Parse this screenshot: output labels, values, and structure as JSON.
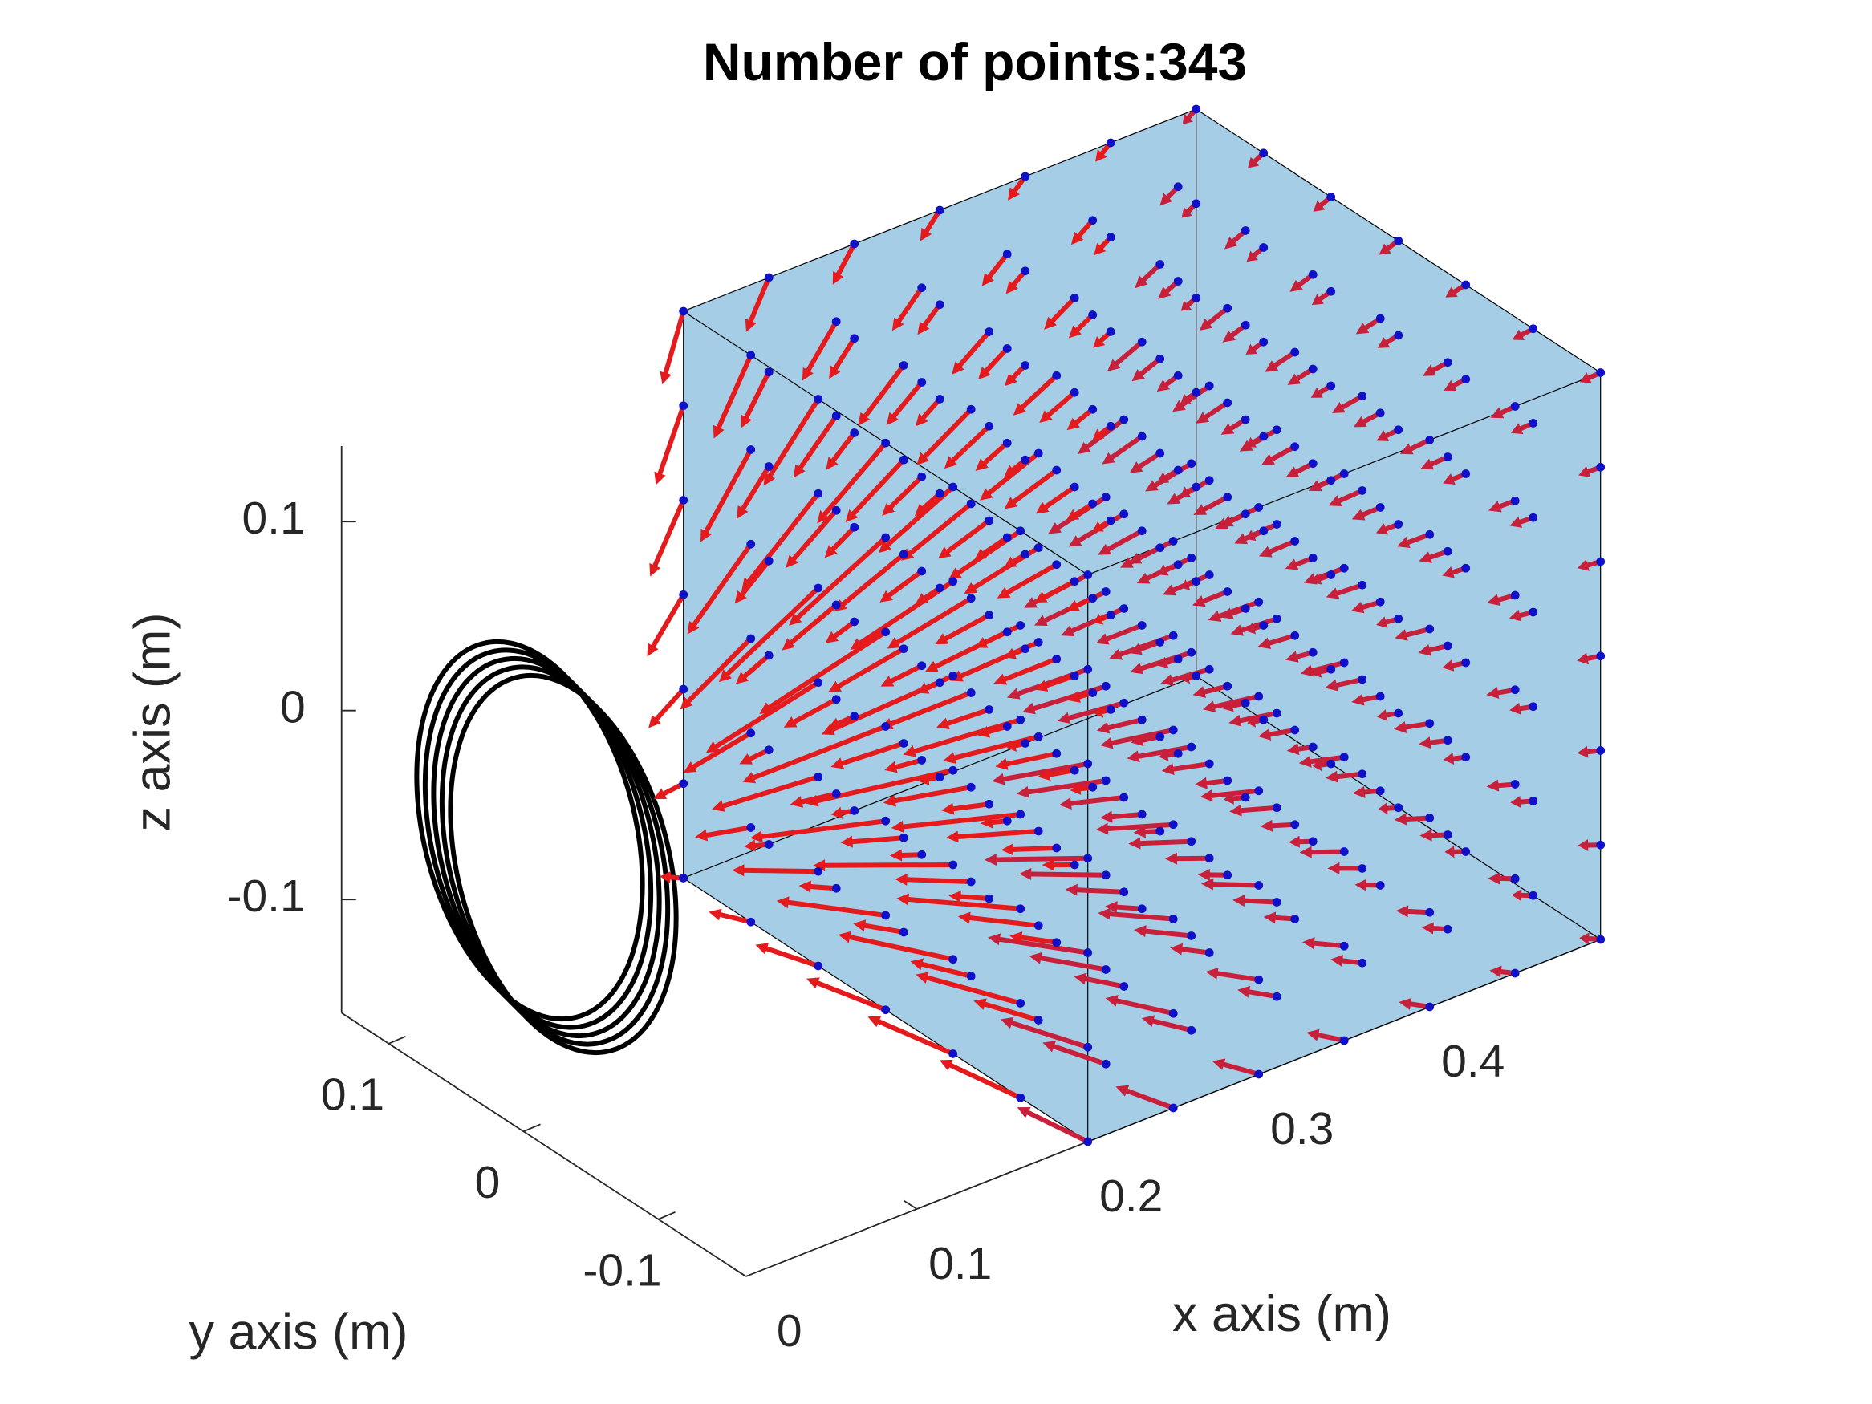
{
  "chart_data": {
    "type": "quiver3",
    "title": "Number of points:343",
    "xlabel": "x axis (m)",
    "ylabel": "y axis (m)",
    "zlabel": "z axis (m)",
    "xlim": [
      0,
      0.5
    ],
    "ylim": [
      -0.165,
      0.135
    ],
    "zlim": [
      -0.16,
      0.14
    ],
    "xticks": [
      0,
      0.1,
      0.2,
      0.3,
      0.4
    ],
    "yticks": [
      -0.1,
      0,
      0.1
    ],
    "zticks": [
      -0.1,
      0,
      0.1
    ],
    "points": {
      "x": [
        0.2,
        0.25,
        0.3,
        0.35,
        0.4,
        0.45,
        0.5
      ],
      "y": [
        -0.165,
        -0.115,
        -0.065,
        -0.015,
        0.035,
        0.085,
        0.135
      ],
      "z": [
        -0.16,
        -0.11,
        -0.06,
        -0.01,
        0.04,
        0.09,
        0.14
      ]
    },
    "point_color": "#1010c8",
    "arrow_color": "#e41a1c",
    "volume_color": "#a6cde6"
  }
}
